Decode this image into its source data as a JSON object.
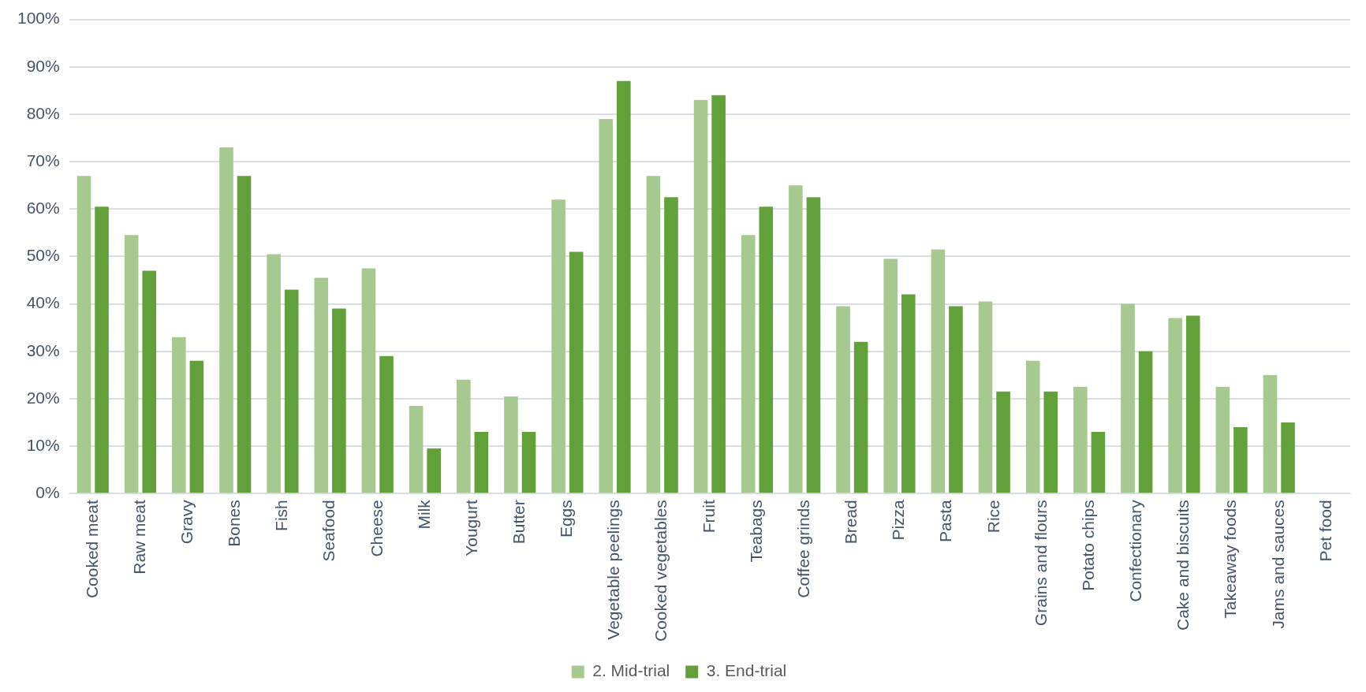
{
  "chart_data": {
    "type": "bar",
    "categories": [
      "Cooked meat",
      "Raw meat",
      "Gravy",
      "Bones",
      "Fish",
      "Seafood",
      "Cheese",
      "Milk",
      "Yougurt",
      "Butter",
      "Eggs",
      "Vegetable peelings",
      "Cooked vegetables",
      "Fruit",
      "Teabags",
      "Coffee grinds",
      "Bread",
      "Pizza",
      "Pasta",
      "Rice",
      "Grains and flours",
      "Potato chips",
      "Confectionary",
      "Cake and biscuits",
      "Takeaway foods",
      "Jams and sauces",
      "Pet food"
    ],
    "series": [
      {
        "name": "2. Mid-trial",
        "color": "#a6c98f",
        "values": [
          67,
          54.5,
          33,
          73,
          50.5,
          45.5,
          47.5,
          18.5,
          24,
          20.5,
          62,
          79,
          67,
          83,
          54.5,
          65,
          39.5,
          49.5,
          51.5,
          40.5,
          28,
          22.5,
          40,
          37,
          22.5,
          25,
          null
        ]
      },
      {
        "name": "3. End-trial",
        "color": "#62a03a",
        "values": [
          60.5,
          47,
          28,
          67,
          43,
          39,
          29,
          9.5,
          13,
          13,
          51,
          87,
          62.5,
          84,
          60.5,
          62.5,
          32,
          42,
          39.5,
          21.5,
          21.5,
          13,
          30,
          37.5,
          14,
          15,
          null
        ]
      }
    ],
    "ylim": [
      0,
      100
    ],
    "yticks": [
      {
        "value": 0,
        "label": "0%"
      },
      {
        "value": 10,
        "label": "10%"
      },
      {
        "value": 20,
        "label": "20%"
      },
      {
        "value": 30,
        "label": "30%"
      },
      {
        "value": 40,
        "label": "40%"
      },
      {
        "value": 50,
        "label": "50%"
      },
      {
        "value": 60,
        "label": "60%"
      },
      {
        "value": 70,
        "label": "70%"
      },
      {
        "value": 80,
        "label": "80%"
      },
      {
        "value": 90,
        "label": "90%"
      },
      {
        "value": 100,
        "label": "100%"
      }
    ],
    "grid": "y",
    "legend": "bottom"
  }
}
